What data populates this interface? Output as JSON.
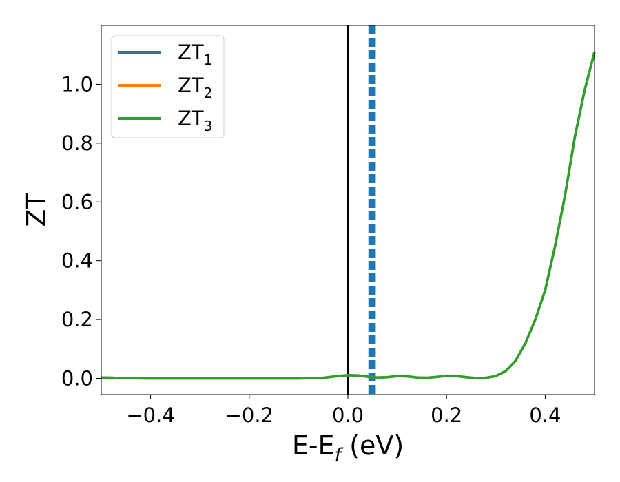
{
  "chart_data": {
    "type": "line",
    "xlabel": "E-E",
    "xlabel_sub": "f",
    "xlabel_unit": " (eV)",
    "ylabel": "ZT",
    "xlim": [
      -0.5,
      0.5
    ],
    "ylim": [
      -0.055,
      1.2
    ],
    "xticks": [
      -0.4,
      -0.2,
      0.0,
      0.2,
      0.4
    ],
    "xtick_labels": [
      "−0.4",
      "−0.2",
      "0.0",
      "0.2",
      "0.4"
    ],
    "yticks": [
      0.0,
      0.2,
      0.4,
      0.6,
      0.8,
      1.0
    ],
    "ytick_labels": [
      "0.0",
      "0.2",
      "0.4",
      "0.6",
      "0.8",
      "1.0"
    ],
    "grid": false,
    "legend_position": "top-left",
    "x": [
      -0.5,
      -0.45,
      -0.4,
      -0.3,
      -0.2,
      -0.1,
      -0.05,
      -0.02,
      0.0,
      0.02,
      0.04,
      0.06,
      0.08,
      0.1,
      0.12,
      0.14,
      0.16,
      0.18,
      0.2,
      0.22,
      0.24,
      0.26,
      0.28,
      0.3,
      0.32,
      0.34,
      0.36,
      0.38,
      0.4,
      0.42,
      0.44,
      0.46,
      0.48,
      0.5
    ],
    "series": [
      {
        "label": "ZT",
        "sub": "1",
        "color": "#1f77b4",
        "values": [
          0.003,
          0.001,
          0.0,
          0.0,
          0.0,
          0.0,
          0.002,
          0.008,
          0.011,
          0.01,
          0.006,
          0.003,
          0.004,
          0.008,
          0.007,
          0.003,
          0.002,
          0.005,
          0.009,
          0.008,
          0.004,
          0.001,
          0.002,
          0.008,
          0.025,
          0.06,
          0.12,
          0.2,
          0.3,
          0.45,
          0.62,
          0.82,
          0.98,
          1.11
        ]
      },
      {
        "label": "ZT",
        "sub": "2",
        "color": "#ff7f0e",
        "values": [
          0.003,
          0.001,
          0.0,
          0.0,
          0.0,
          0.0,
          0.002,
          0.008,
          0.011,
          0.01,
          0.006,
          0.003,
          0.004,
          0.008,
          0.007,
          0.003,
          0.002,
          0.005,
          0.009,
          0.008,
          0.004,
          0.001,
          0.002,
          0.008,
          0.025,
          0.06,
          0.12,
          0.2,
          0.3,
          0.45,
          0.62,
          0.82,
          0.98,
          1.11
        ]
      },
      {
        "label": "ZT",
        "sub": "3",
        "color": "#2ca02c",
        "values": [
          0.003,
          0.001,
          0.0,
          0.0,
          0.0,
          0.0,
          0.002,
          0.008,
          0.011,
          0.01,
          0.006,
          0.003,
          0.004,
          0.008,
          0.007,
          0.003,
          0.002,
          0.005,
          0.009,
          0.008,
          0.004,
          0.001,
          0.002,
          0.008,
          0.025,
          0.06,
          0.12,
          0.2,
          0.3,
          0.45,
          0.62,
          0.82,
          0.98,
          1.11
        ]
      }
    ],
    "vlines": [
      {
        "x": 0.0,
        "color": "#000000",
        "style": "solid"
      },
      {
        "x": 0.044,
        "color": "#1f77b4",
        "style": "dashed"
      },
      {
        "x": 0.049,
        "color": "#1f77b4",
        "style": "dashed"
      },
      {
        "x": 0.054,
        "color": "#1f77b4",
        "style": "dashed"
      }
    ]
  }
}
